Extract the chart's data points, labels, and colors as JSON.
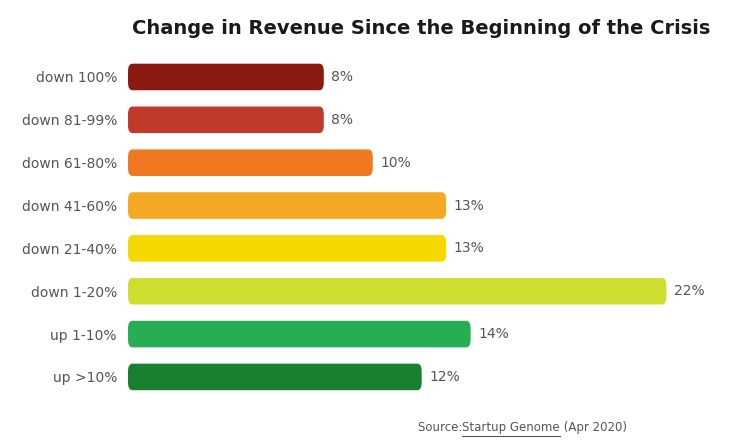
{
  "title": "Change in Revenue Since the Beginning of the Crisis",
  "categories": [
    "down 100%",
    "down 81-99%",
    "down 61-80%",
    "down 41-60%",
    "down 21-40%",
    "down 1-20%",
    "up 1-10%",
    "up >10%"
  ],
  "values": [
    8,
    8,
    10,
    13,
    13,
    22,
    14,
    12
  ],
  "colors": [
    "#8B1A10",
    "#C0392B",
    "#F07820",
    "#F5A823",
    "#F5D800",
    "#CEDE30",
    "#27AE55",
    "#1A8030"
  ],
  "bar_labels": [
    "8%",
    "8%",
    "10%",
    "13%",
    "13%",
    "22%",
    "14%",
    "12%"
  ],
  "xlim": [
    0,
    24
  ],
  "background_color": "#ffffff",
  "title_fontsize": 14,
  "label_color": "#555555",
  "ytick_color": "#555555",
  "source_text": "Source: ",
  "source_link": "Startup Genome",
  "source_suffix": " (Apr 2020)",
  "bar_height": 0.62,
  "bar_gap": 0.12
}
